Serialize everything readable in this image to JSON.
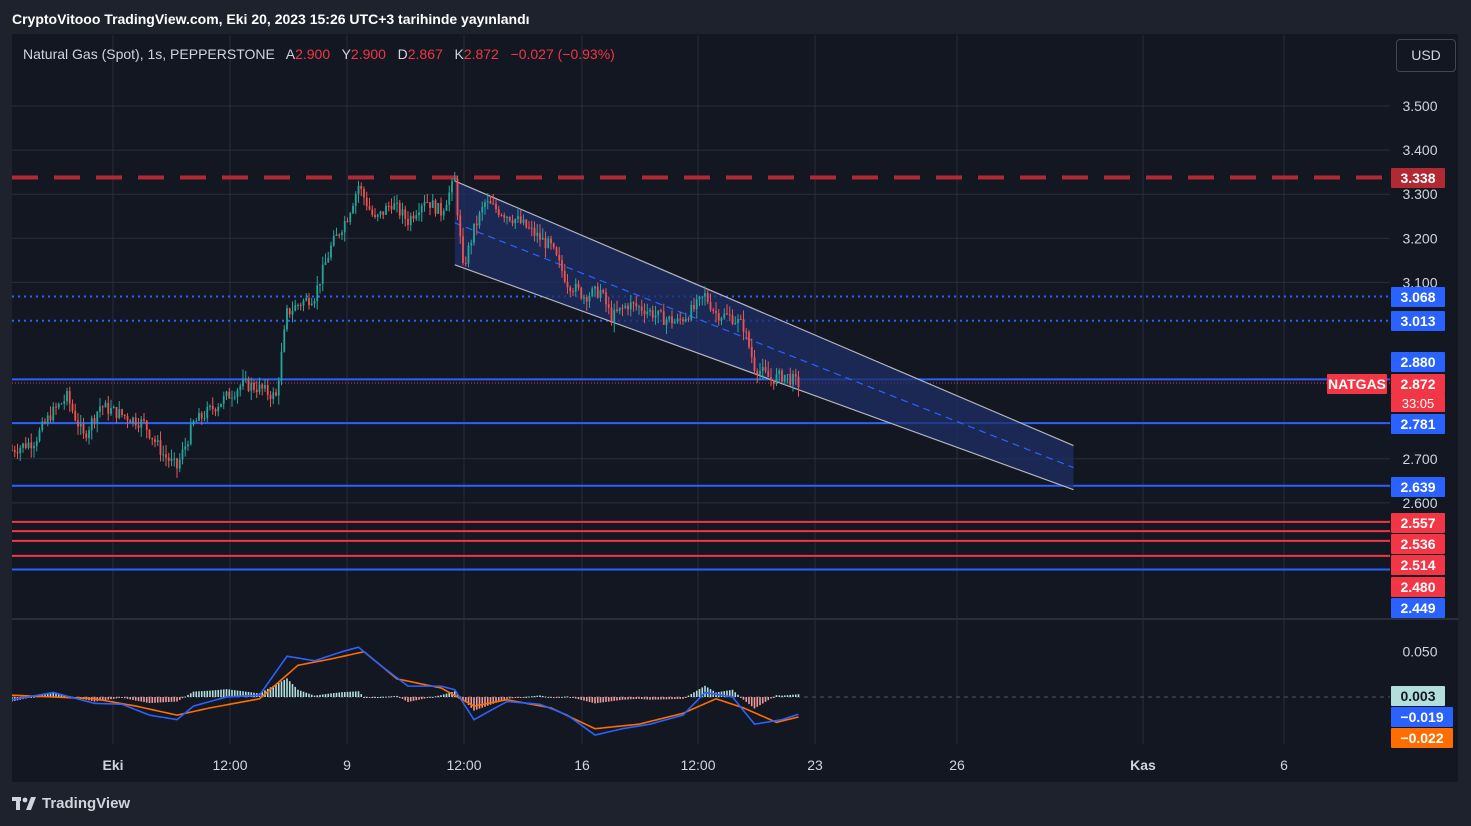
{
  "header": {
    "published": "CryptoVitooo TradingView.com, Eki 20, 2023 15:26 UTC+3 tarihinde yayınlandı"
  },
  "symbol_info": {
    "name": "Natural Gas (Spot), 1s, PEPPERSTONE",
    "open_label": "A",
    "open": "2.900",
    "high_label": "Y",
    "high": "2.900",
    "low_label": "D",
    "low": "2.867",
    "close_label": "K",
    "close": "2.872",
    "change": "−0.027 (−0.93%)"
  },
  "currency_button": "USD",
  "footer": {
    "brand": "TradingView",
    "logo_icon": "tradingview-logo-icon"
  },
  "colors": {
    "background": "#131722",
    "frame": "#1e222d",
    "grid": "#2a2e39",
    "up": "#26a69a",
    "down": "#ef5350",
    "blue_line": "#2962ff",
    "red_line": "#f23645",
    "dark_red": "#b22833",
    "macd": "#2962ff",
    "signal": "#ff6d00",
    "channel_fill": "#1f2f66"
  },
  "chart_data": [
    {
      "type": "candlestick",
      "symbol": "NATGAS",
      "ylim": [
        2.43,
        3.57
      ],
      "yticks": [
        "2.600",
        "2.700",
        "3.100",
        "3.200",
        "3.300",
        "3.400",
        "3.500"
      ],
      "xlabels": [
        "Eki",
        "12:00",
        "9",
        "12:00",
        "16",
        "12:00",
        "23",
        "26",
        "Kas",
        "6"
      ],
      "key_points": [
        {
          "t": 0,
          "v": 2.72
        },
        {
          "t": 8,
          "v": 2.74
        },
        {
          "t": 14,
          "v": 2.8
        },
        {
          "t": 20,
          "v": 2.84
        },
        {
          "t": 26,
          "v": 2.75
        },
        {
          "t": 32,
          "v": 2.82
        },
        {
          "t": 40,
          "v": 2.8
        },
        {
          "t": 48,
          "v": 2.78
        },
        {
          "t": 55,
          "v": 2.71
        },
        {
          "t": 60,
          "v": 2.68
        },
        {
          "t": 66,
          "v": 2.78
        },
        {
          "t": 72,
          "v": 2.81
        },
        {
          "t": 78,
          "v": 2.84
        },
        {
          "t": 84,
          "v": 2.87
        },
        {
          "t": 90,
          "v": 2.86
        },
        {
          "t": 96,
          "v": 2.84
        },
        {
          "t": 100,
          "v": 3.03
        },
        {
          "t": 104,
          "v": 3.05
        },
        {
          "t": 110,
          "v": 3.07
        },
        {
          "t": 116,
          "v": 3.18
        },
        {
          "t": 122,
          "v": 3.25
        },
        {
          "t": 126,
          "v": 3.32
        },
        {
          "t": 132,
          "v": 3.24
        },
        {
          "t": 138,
          "v": 3.28
        },
        {
          "t": 144,
          "v": 3.24
        },
        {
          "t": 150,
          "v": 3.29
        },
        {
          "t": 156,
          "v": 3.26
        },
        {
          "t": 161,
          "v": 3.33
        },
        {
          "t": 164,
          "v": 3.13
        },
        {
          "t": 168,
          "v": 3.22
        },
        {
          "t": 172,
          "v": 3.28
        },
        {
          "t": 178,
          "v": 3.26
        },
        {
          "t": 184,
          "v": 3.24
        },
        {
          "t": 190,
          "v": 3.21
        },
        {
          "t": 196,
          "v": 3.18
        },
        {
          "t": 202,
          "v": 3.1
        },
        {
          "t": 208,
          "v": 3.07
        },
        {
          "t": 214,
          "v": 3.08
        },
        {
          "t": 218,
          "v": 3.02
        },
        {
          "t": 224,
          "v": 3.05
        },
        {
          "t": 230,
          "v": 3.04
        },
        {
          "t": 236,
          "v": 3.02
        },
        {
          "t": 242,
          "v": 3.01
        },
        {
          "t": 248,
          "v": 3.04
        },
        {
          "t": 252,
          "v": 3.07
        },
        {
          "t": 256,
          "v": 3.03
        },
        {
          "t": 262,
          "v": 3.02
        },
        {
          "t": 266,
          "v": 3.0
        },
        {
          "t": 270,
          "v": 2.91
        },
        {
          "t": 276,
          "v": 2.88
        },
        {
          "t": 281,
          "v": 2.89
        },
        {
          "t": 286,
          "v": 2.87
        }
      ],
      "last_time": 286,
      "price_levels": [
        {
          "value": 3.338,
          "label": "3.338",
          "style": "dashed",
          "color": "#b22833"
        },
        {
          "value": 3.068,
          "label": "3.068",
          "style": "dotted",
          "color": "#2962ff"
        },
        {
          "value": 3.013,
          "label": "3.013",
          "style": "dotted",
          "color": "#2962ff"
        },
        {
          "value": 2.88,
          "label": "2.880",
          "style": "solid",
          "color": "#2962ff"
        },
        {
          "value": 2.781,
          "label": "2.781",
          "style": "solid",
          "color": "#2962ff"
        },
        {
          "value": 2.639,
          "label": "2.639",
          "style": "solid",
          "color": "#2962ff"
        },
        {
          "value": 2.557,
          "label": "2.557",
          "style": "solid",
          "color": "#f23645"
        },
        {
          "value": 2.536,
          "label": "2.536",
          "style": "solid",
          "color": "#f23645"
        },
        {
          "value": 2.514,
          "label": "2.514",
          "style": "solid",
          "color": "#f23645"
        },
        {
          "value": 2.48,
          "label": "2.480",
          "style": "solid",
          "color": "#f23645"
        },
        {
          "value": 2.449,
          "label": "2.449",
          "style": "solid",
          "color": "#2962ff"
        }
      ],
      "current_price": {
        "symbol": "NATGAS",
        "value": "2.872",
        "countdown": "33:05"
      },
      "channel": {
        "upper_start": {
          "t": 161,
          "v": 3.33
        },
        "upper_end": {
          "t": 386,
          "v": 2.73
        },
        "lower_start": {
          "t": 161,
          "v": 3.14
        },
        "lower_end": {
          "t": 386,
          "v": 2.63
        }
      }
    },
    {
      "type": "macd",
      "ylim": [
        -0.11,
        0.09
      ],
      "yticks": [
        "0.050"
      ],
      "values": {
        "histogram": "0.003",
        "macd": "−0.019",
        "signal": "−0.022"
      },
      "macd_points": [
        {
          "t": 0,
          "v": -0.003
        },
        {
          "t": 15,
          "v": 0.005
        },
        {
          "t": 30,
          "v": -0.007
        },
        {
          "t": 40,
          "v": -0.008
        },
        {
          "t": 50,
          "v": -0.02
        },
        {
          "t": 60,
          "v": -0.025
        },
        {
          "t": 66,
          "v": -0.01
        },
        {
          "t": 78,
          "v": 0.0
        },
        {
          "t": 90,
          "v": 0.002
        },
        {
          "t": 100,
          "v": 0.045
        },
        {
          "t": 110,
          "v": 0.04
        },
        {
          "t": 120,
          "v": 0.05
        },
        {
          "t": 126,
          "v": 0.055
        },
        {
          "t": 134,
          "v": 0.035
        },
        {
          "t": 144,
          "v": 0.012
        },
        {
          "t": 156,
          "v": 0.012
        },
        {
          "t": 161,
          "v": 0.008
        },
        {
          "t": 168,
          "v": -0.025
        },
        {
          "t": 180,
          "v": -0.005
        },
        {
          "t": 192,
          "v": -0.008
        },
        {
          "t": 202,
          "v": -0.02
        },
        {
          "t": 212,
          "v": -0.042
        },
        {
          "t": 222,
          "v": -0.035
        },
        {
          "t": 232,
          "v": -0.03
        },
        {
          "t": 244,
          "v": -0.02
        },
        {
          "t": 252,
          "v": 0.005
        },
        {
          "t": 262,
          "v": 0.0
        },
        {
          "t": 270,
          "v": -0.03
        },
        {
          "t": 280,
          "v": -0.025
        },
        {
          "t": 286,
          "v": -0.019
        }
      ],
      "signal_points": [
        {
          "t": 0,
          "v": 0.002
        },
        {
          "t": 15,
          "v": 0.0
        },
        {
          "t": 30,
          "v": -0.002
        },
        {
          "t": 45,
          "v": -0.01
        },
        {
          "t": 60,
          "v": -0.02
        },
        {
          "t": 72,
          "v": -0.012
        },
        {
          "t": 90,
          "v": -0.002
        },
        {
          "t": 104,
          "v": 0.035
        },
        {
          "t": 116,
          "v": 0.042
        },
        {
          "t": 128,
          "v": 0.05
        },
        {
          "t": 140,
          "v": 0.02
        },
        {
          "t": 156,
          "v": 0.01
        },
        {
          "t": 168,
          "v": -0.01
        },
        {
          "t": 180,
          "v": -0.003
        },
        {
          "t": 196,
          "v": -0.012
        },
        {
          "t": 212,
          "v": -0.035
        },
        {
          "t": 228,
          "v": -0.03
        },
        {
          "t": 244,
          "v": -0.018
        },
        {
          "t": 256,
          "v": -0.002
        },
        {
          "t": 266,
          "v": -0.012
        },
        {
          "t": 278,
          "v": -0.028
        },
        {
          "t": 286,
          "v": -0.022
        }
      ]
    }
  ]
}
